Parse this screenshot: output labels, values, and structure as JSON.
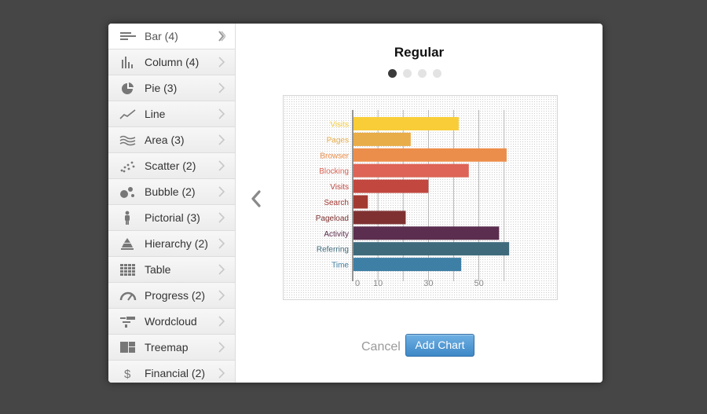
{
  "sidebar": {
    "items": [
      {
        "label": "Bar (4)",
        "icon": "bar-chart-icon",
        "active": true
      },
      {
        "label": "Column (4)",
        "icon": "column-chart-icon"
      },
      {
        "label": "Pie (3)",
        "icon": "pie-chart-icon"
      },
      {
        "label": "Line",
        "icon": "line-chart-icon"
      },
      {
        "label": "Area (3)",
        "icon": "area-chart-icon"
      },
      {
        "label": "Scatter (2)",
        "icon": "scatter-chart-icon"
      },
      {
        "label": "Bubble (2)",
        "icon": "bubble-chart-icon"
      },
      {
        "label": "Pictorial (3)",
        "icon": "person-icon"
      },
      {
        "label": "Hierarchy (2)",
        "icon": "pyramid-icon"
      },
      {
        "label": "Table",
        "icon": "table-grid-icon"
      },
      {
        "label": "Progress (2)",
        "icon": "gauge-icon"
      },
      {
        "label": "Wordcloud",
        "icon": "wordcloud-icon"
      },
      {
        "label": "Treemap",
        "icon": "treemap-icon"
      },
      {
        "label": "Financial (2)",
        "icon": "dollar-icon"
      }
    ]
  },
  "main": {
    "title": "Regular",
    "carousel": {
      "count": 4,
      "active": 0
    }
  },
  "footer": {
    "cancel_label": "Cancel",
    "add_label": "Add Chart"
  },
  "colors": {
    "accent": "#4a94d0",
    "backdrop": "#464646"
  },
  "chart_data": {
    "type": "bar",
    "orientation": "horizontal",
    "categories": [
      "Visits",
      "Pages",
      "Browser",
      "Blocking",
      "Visits",
      "Search",
      "Pageload",
      "Activity",
      "Referring",
      "Time"
    ],
    "values": [
      42,
      23,
      61,
      46,
      30,
      6,
      21,
      58,
      62,
      43
    ],
    "colors": [
      "#f8cd38",
      "#e8ad48",
      "#ec8e4b",
      "#dd6456",
      "#c1473f",
      "#a33a32",
      "#7f3131",
      "#5b2d4e",
      "#3e6a7c",
      "#3e7fa5"
    ],
    "x_ticks": [
      0,
      10,
      30,
      50
    ],
    "grid": true
  }
}
